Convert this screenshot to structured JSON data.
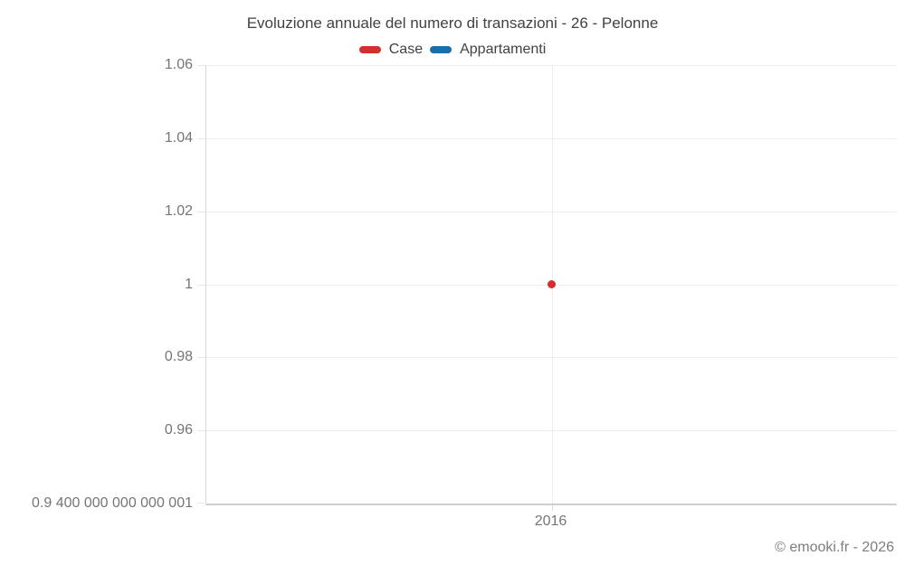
{
  "title": "Evoluzione annuale del numero di transazioni - 26 - Pelonne",
  "footer": "© emooki.fr - 2026",
  "colors": {
    "case_red": "#d32f2f",
    "appartamenti_blue": "#1c6ea8",
    "axis_text": "#757575",
    "title_text": "#424242"
  },
  "legend": {
    "items": [
      {
        "label": "Case",
        "color": "#d32f2f"
      },
      {
        "label": "Appartamenti",
        "color": "#1c6ea8"
      }
    ]
  },
  "chart_data": {
    "type": "scatter",
    "title": "Evoluzione annuale del numero di transazioni - 26 - Pelonne",
    "xlabel": "",
    "ylabel": "",
    "grid": true,
    "legend_position": "top",
    "ylim": [
      0.94,
      1.06
    ],
    "x_ticks": [
      {
        "value": 2016,
        "label": "2016"
      }
    ],
    "y_ticks": [
      {
        "value": 1.06,
        "label": "1.06"
      },
      {
        "value": 1.04,
        "label": "1.04"
      },
      {
        "value": 1.02,
        "label": "1.02"
      },
      {
        "value": 1.0,
        "label": "1"
      },
      {
        "value": 0.98,
        "label": "0.98"
      },
      {
        "value": 0.96,
        "label": "0.96"
      },
      {
        "value": 0.94,
        "label": "0.9 400 000 000 000 001"
      }
    ],
    "series": [
      {
        "name": "Case",
        "color": "#d32f2f",
        "points": [
          {
            "x": 2016,
            "y": 1
          }
        ]
      },
      {
        "name": "Appartamenti",
        "color": "#1c6ea8",
        "points": []
      }
    ]
  }
}
